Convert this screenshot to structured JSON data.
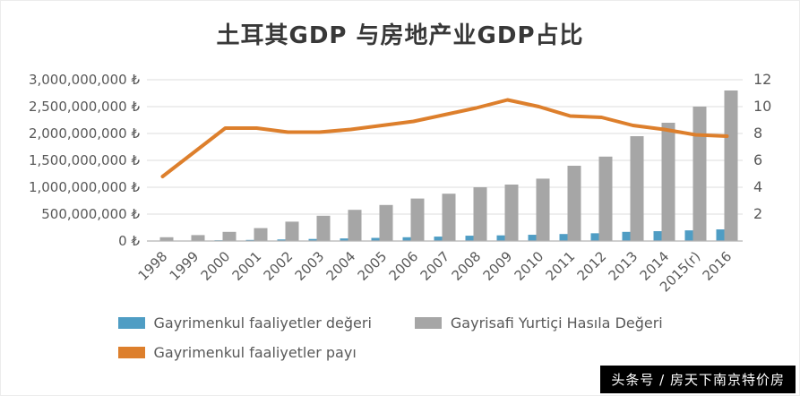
{
  "chart_data": {
    "type": "bar",
    "title": "土耳其GDP 与房地产业GDP占比",
    "categories": [
      "1998",
      "1999",
      "2000",
      "2001",
      "2002",
      "2003",
      "2004",
      "2005",
      "2006",
      "2007",
      "2008",
      "2009",
      "2010",
      "2011",
      "2012",
      "2013",
      "2014",
      "2015(r)",
      "2016"
    ],
    "series": [
      {
        "name": "Gayrimenkul faaliyetler değeri",
        "type": "bar",
        "axis": "left",
        "color": "#4f9dc4",
        "values": [
          3400000,
          7000000,
          14000000,
          20000000,
          29000000,
          38000000,
          48000000,
          58000000,
          70000000,
          82000000,
          99000000,
          105000000,
          116000000,
          130000000,
          144000000,
          170000000,
          183000000,
          198000000,
          216000000
        ]
      },
      {
        "name": "Gayrisafi Yurtiçi Hasıla Değeri",
        "type": "bar",
        "axis": "left",
        "color": "#a6a6a6",
        "values": [
          70000000,
          110000000,
          170000000,
          240000000,
          360000000,
          470000000,
          580000000,
          670000000,
          790000000,
          880000000,
          1000000000,
          1050000000,
          1160000000,
          1400000000,
          1570000000,
          1950000000,
          2200000000,
          2500000000,
          2800000000
        ]
      },
      {
        "name": "Gayrimenkul faaliyetler payı",
        "type": "line",
        "axis": "right",
        "color": "#dd7f2c",
        "values": [
          4.8,
          6.6,
          8.4,
          8.4,
          8.1,
          8.1,
          8.3,
          8.6,
          8.9,
          9.4,
          9.9,
          10.5,
          10.0,
          9.3,
          9.2,
          8.6,
          8.3,
          7.9,
          7.8
        ]
      }
    ],
    "left_axis": {
      "min": 0,
      "max": 3000000000,
      "step": 500000000,
      "suffix": " ₺"
    },
    "right_axis": {
      "min": 0,
      "max": 12,
      "step": 2
    },
    "grid": true,
    "legend_position": "bottom"
  },
  "watermark": {
    "text": "头条号 / 房天下南京特价房"
  }
}
